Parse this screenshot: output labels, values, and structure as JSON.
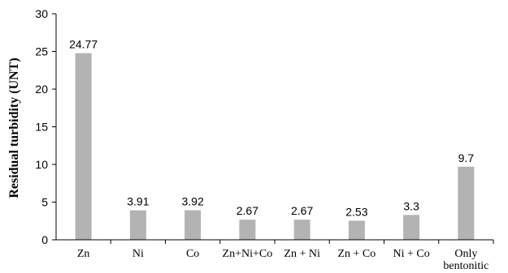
{
  "chart_data": {
    "type": "bar",
    "title": "",
    "xlabel": "",
    "ylabel": "Residual turbidity (UNT)",
    "ylim": [
      0,
      30
    ],
    "yticks": [
      0,
      5,
      10,
      15,
      20,
      25,
      30
    ],
    "grid": false,
    "legend": "none",
    "categories": [
      [
        "Zn"
      ],
      [
        "Ni"
      ],
      [
        "Co"
      ],
      [
        "Zn+Ni+Co"
      ],
      [
        "Zn + Ni"
      ],
      [
        "Zn + Co"
      ],
      [
        "Ni + Co"
      ],
      [
        "Only",
        "bentonitic"
      ]
    ],
    "values": [
      24.77,
      3.91,
      3.92,
      2.67,
      2.67,
      2.53,
      3.3,
      9.7
    ],
    "data_labels": [
      "24.77",
      "3.91",
      "3.92",
      "2.67",
      "2.67",
      "2.53",
      "3.3",
      "9.7"
    ],
    "bar_color": "#b3b3b3",
    "axis_color": "#000000"
  }
}
